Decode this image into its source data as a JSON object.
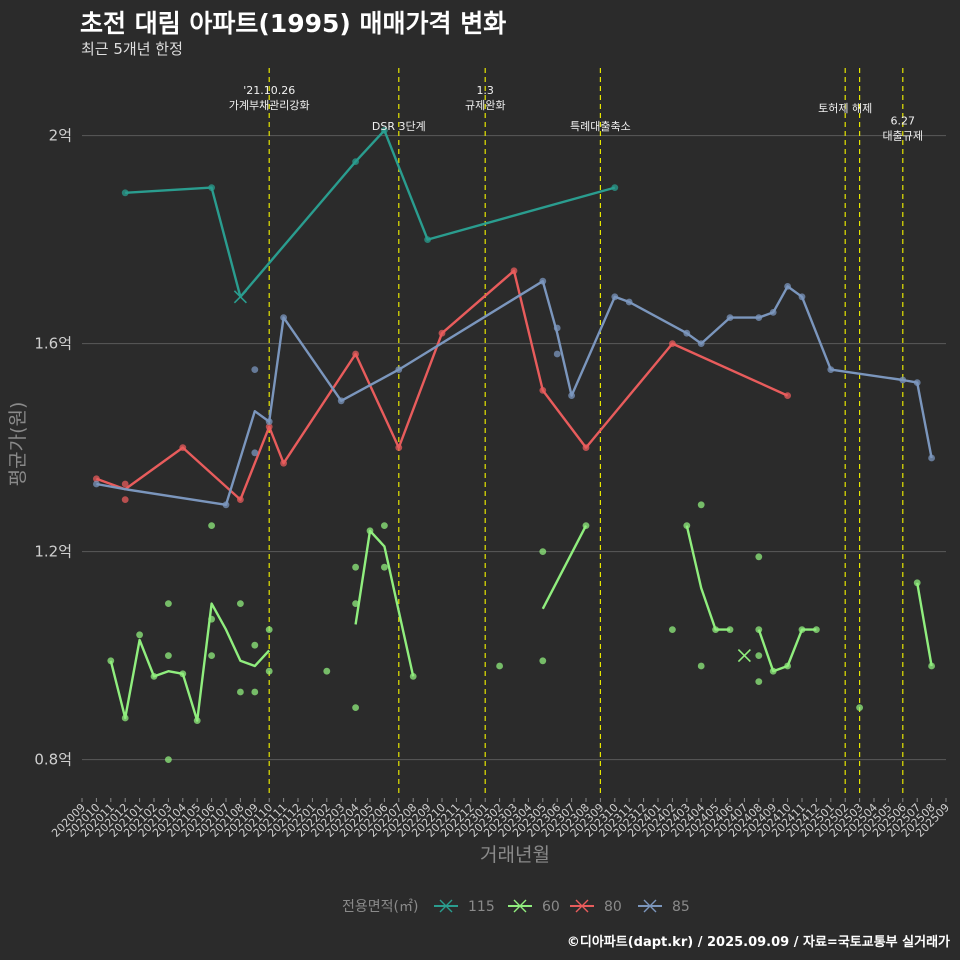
{
  "header": {
    "title": "초전 대림 아파트(1995) 매매가격 변화",
    "subtitle": "최근 5개년 한정",
    "caption": "©디아파트(dapt.kr) / 2025.09.09 / 자료=국토교통부 실거래가"
  },
  "chart_data": {
    "type": "line",
    "xlabel": "거래년월",
    "ylabel": "평균가(원)",
    "ylim": [
      0.73,
      2.13
    ],
    "yticks": [
      0.8,
      1.2,
      1.6,
      2.0
    ],
    "ytick_labels": [
      "0.8억",
      "1.2억",
      "1.6억",
      "2억"
    ],
    "categories": [
      "202009",
      "202010",
      "202011",
      "202012",
      "202101",
      "202102",
      "202103",
      "202104",
      "202105",
      "202106",
      "202107",
      "202108",
      "202109",
      "202110",
      "202111",
      "202112",
      "202201",
      "202202",
      "202203",
      "202204",
      "202205",
      "202206",
      "202207",
      "202208",
      "202209",
      "202210",
      "202211",
      "202212",
      "202301",
      "202302",
      "202303",
      "202304",
      "202305",
      "202306",
      "202307",
      "202308",
      "202309",
      "202310",
      "202311",
      "202312",
      "202401",
      "202402",
      "202403",
      "202404",
      "202405",
      "202406",
      "202407",
      "202408",
      "202409",
      "202410",
      "202411",
      "202412",
      "202501",
      "202502",
      "202503",
      "202504",
      "202505",
      "202506",
      "202507",
      "202508",
      "202509"
    ],
    "legend": {
      "title": "전용면적(㎡)",
      "position": "bottom"
    },
    "grid": true,
    "series": [
      {
        "name": "115",
        "color": "#2a9d8f",
        "line": [
          [
            "202012",
            1.89
          ],
          [
            "202106",
            1.9
          ],
          [
            "202108",
            1.69
          ],
          [
            "202204",
            1.95
          ],
          [
            "202206",
            2.01
          ],
          [
            "202209",
            1.8
          ],
          [
            "202310",
            1.9
          ]
        ],
        "points": [
          [
            "202012",
            1.89
          ],
          [
            "202106",
            1.9
          ],
          [
            "202204",
            1.95
          ],
          [
            "202206",
            2.01
          ],
          [
            "202209",
            1.8
          ],
          [
            "202310",
            1.9
          ]
        ],
        "cross": [
          [
            "202108",
            1.69
          ]
        ]
      },
      {
        "name": "60",
        "color": "#90ee7e",
        "line": [
          [
            "202011",
            0.99
          ],
          [
            "202012",
            0.88
          ],
          [
            "202101",
            1.03
          ],
          [
            "202102",
            0.96
          ],
          [
            "202103",
            0.97
          ],
          [
            "202104",
            0.965
          ],
          [
            "202105",
            0.875
          ],
          [
            "202106",
            1.1
          ],
          [
            "202107",
            1.05
          ],
          [
            "202108",
            0.99
          ],
          [
            "202109",
            0.98
          ],
          [
            "202110",
            1.01
          ],
          null,
          [
            "202204",
            1.06
          ],
          [
            "202205",
            1.24
          ],
          [
            "202206",
            1.21
          ],
          [
            "202208",
            0.96
          ],
          null,
          [
            "202305",
            1.09
          ],
          [
            "202308",
            1.25
          ],
          null,
          [
            "202403",
            1.25
          ],
          [
            "202404",
            1.13
          ],
          [
            "202405",
            1.05
          ],
          [
            "202406",
            1.05
          ],
          null,
          [
            "202408",
            1.05
          ],
          [
            "202409",
            0.97
          ],
          [
            "202410",
            0.98
          ],
          [
            "202411",
            1.05
          ],
          [
            "202412",
            1.05
          ],
          null,
          [
            "202507",
            1.14
          ],
          [
            "202508",
            0.98
          ]
        ],
        "points": [
          [
            "202011",
            0.99
          ],
          [
            "202012",
            0.88
          ],
          [
            "202101",
            1.04
          ],
          [
            "202102",
            0.96
          ],
          [
            "202103",
            1.1
          ],
          [
            "202103",
            1.0
          ],
          [
            "202103",
            0.8
          ],
          [
            "202104",
            0.965
          ],
          [
            "202105",
            0.875
          ],
          [
            "202106",
            1.25
          ],
          [
            "202106",
            1.07
          ],
          [
            "202106",
            1.0
          ],
          [
            "202108",
            1.1
          ],
          [
            "202108",
            0.93
          ],
          [
            "202109",
            1.02
          ],
          [
            "202109",
            0.93
          ],
          [
            "202110",
            1.05
          ],
          [
            "202110",
            0.97
          ],
          [
            "202202",
            0.97
          ],
          [
            "202204",
            1.17
          ],
          [
            "202204",
            1.1
          ],
          [
            "202204",
            0.9
          ],
          [
            "202205",
            1.24
          ],
          [
            "202206",
            1.25
          ],
          [
            "202206",
            1.17
          ],
          [
            "202208",
            0.96
          ],
          [
            "202302",
            0.98
          ],
          [
            "202305",
            1.2
          ],
          [
            "202305",
            0.99
          ],
          [
            "202308",
            1.25
          ],
          [
            "202402",
            1.05
          ],
          [
            "202403",
            1.25
          ],
          [
            "202404",
            1.29
          ],
          [
            "202404",
            0.98
          ],
          [
            "202405",
            1.05
          ],
          [
            "202406",
            1.05
          ],
          [
            "202408",
            1.19
          ],
          [
            "202408",
            1.05
          ],
          [
            "202408",
            1.0
          ],
          [
            "202408",
            0.95
          ],
          [
            "202409",
            0.97
          ],
          [
            "202410",
            0.98
          ],
          [
            "202411",
            1.05
          ],
          [
            "202412",
            1.05
          ],
          [
            "202503",
            0.9
          ],
          [
            "202507",
            1.14
          ],
          [
            "202508",
            0.98
          ]
        ],
        "cross": [
          [
            "202407",
            1.0
          ]
        ]
      },
      {
        "name": "80",
        "color": "#e85c5c",
        "line": [
          [
            "202010",
            1.34
          ],
          [
            "202012",
            1.32
          ],
          [
            "202104",
            1.4
          ],
          [
            "202108",
            1.3
          ],
          [
            "202110",
            1.44
          ],
          [
            "202111",
            1.37
          ],
          [
            "202204",
            1.58
          ],
          [
            "202207",
            1.4
          ],
          [
            "202210",
            1.62
          ],
          [
            "202303",
            1.74
          ],
          [
            "202305",
            1.51
          ],
          [
            "202308",
            1.4
          ],
          [
            "202402",
            1.6
          ],
          [
            "202410",
            1.5
          ]
        ],
        "points": [
          [
            "202010",
            1.34
          ],
          [
            "202012",
            1.33
          ],
          [
            "202012",
            1.3
          ],
          [
            "202104",
            1.4
          ],
          [
            "202108",
            1.3
          ],
          [
            "202110",
            1.44
          ],
          [
            "202111",
            1.37
          ],
          [
            "202204",
            1.58
          ],
          [
            "202207",
            1.4
          ],
          [
            "202210",
            1.62
          ],
          [
            "202303",
            1.74
          ],
          [
            "202305",
            1.51
          ],
          [
            "202308",
            1.4
          ],
          [
            "202402",
            1.6
          ],
          [
            "202410",
            1.5
          ]
        ],
        "cross": []
      },
      {
        "name": "85",
        "color": "#7b96bd",
        "line": [
          [
            "202010",
            1.33
          ],
          [
            "202012",
            1.32
          ],
          [
            "202107",
            1.29
          ],
          [
            "202109",
            1.47
          ],
          [
            "202110",
            1.45
          ],
          [
            "202111",
            1.65
          ],
          [
            "202203",
            1.49
          ],
          [
            "202207",
            1.55
          ],
          [
            "202305",
            1.72
          ],
          [
            "202306",
            1.62
          ],
          [
            "202307",
            1.5
          ],
          [
            "202310",
            1.69
          ],
          [
            "202311",
            1.68
          ],
          [
            "202403",
            1.62
          ],
          [
            "202404",
            1.6
          ],
          [
            "202406",
            1.65
          ],
          [
            "202408",
            1.65
          ],
          [
            "202409",
            1.66
          ],
          [
            "202410",
            1.71
          ],
          [
            "202411",
            1.69
          ],
          [
            "202501",
            1.55
          ],
          [
            "202506",
            1.53
          ],
          [
            "202507",
            1.525
          ],
          [
            "202508",
            1.38
          ]
        ],
        "points": [
          [
            "202010",
            1.33
          ],
          [
            "202107",
            1.29
          ],
          [
            "202109",
            1.55
          ],
          [
            "202109",
            1.39
          ],
          [
            "202110",
            1.45
          ],
          [
            "202111",
            1.65
          ],
          [
            "202203",
            1.49
          ],
          [
            "202207",
            1.55
          ],
          [
            "202305",
            1.72
          ],
          [
            "202306",
            1.63
          ],
          [
            "202306",
            1.58
          ],
          [
            "202307",
            1.5
          ],
          [
            "202310",
            1.69
          ],
          [
            "202311",
            1.68
          ],
          [
            "202403",
            1.62
          ],
          [
            "202404",
            1.6
          ],
          [
            "202406",
            1.65
          ],
          [
            "202408",
            1.65
          ],
          [
            "202409",
            1.66
          ],
          [
            "202410",
            1.71
          ],
          [
            "202411",
            1.69
          ],
          [
            "202501",
            1.55
          ],
          [
            "202506",
            1.53
          ],
          [
            "202507",
            1.525
          ],
          [
            "202508",
            1.38
          ]
        ],
        "cross": []
      }
    ],
    "annotations": [
      {
        "x": "202110",
        "lines": [
          "'21.10.26",
          "가계부채관리강화"
        ],
        "row": 0
      },
      {
        "x": "202207",
        "lines": [
          "DSR 3단계"
        ],
        "row": 2
      },
      {
        "x": "202301",
        "lines": [
          "1.3",
          "규제완화"
        ],
        "row": 0
      },
      {
        "x": "202309",
        "lines": [
          "특례대출축소"
        ],
        "row": 2
      },
      {
        "x": "202502",
        "lines": [
          "토허제 해제"
        ],
        "row": 1
      },
      {
        "x": "202503",
        "lines": [],
        "row": 1
      },
      {
        "x": "202506",
        "lines": [
          "6.27",
          "대출규제"
        ],
        "row": 1.7
      }
    ]
  }
}
